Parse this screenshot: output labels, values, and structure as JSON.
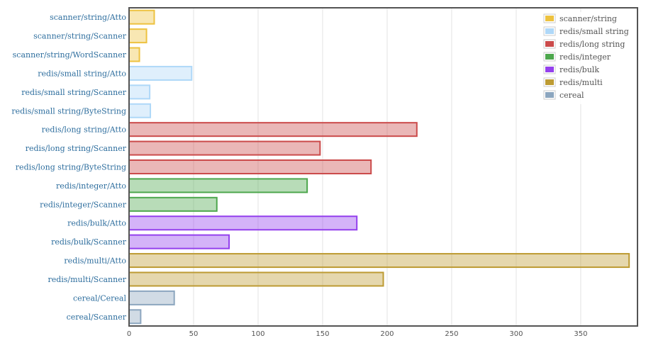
{
  "chart_data": {
    "type": "bar",
    "orientation": "horizontal",
    "categories": [
      "scanner/string/Atto",
      "scanner/string/Scanner",
      "scanner/string/WordScanner",
      "redis/small string/Atto",
      "redis/small string/Scanner",
      "redis/small string/ByteString",
      "redis/long string/Atto",
      "redis/long string/Scanner",
      "redis/long string/ByteString",
      "redis/integer/Atto",
      "redis/integer/Scanner",
      "redis/bulk/Atto",
      "redis/bulk/Scanner",
      "redis/multi/Atto",
      "redis/multi/Scanner",
      "cereal/Cereal",
      "cereal/Scanner"
    ],
    "values": [
      19.5,
      13.5,
      8,
      48.5,
      16,
      16.5,
      223,
      148,
      187.5,
      138,
      68,
      176.5,
      77.5,
      387.5,
      197,
      35,
      9
    ],
    "groups": [
      0,
      0,
      0,
      1,
      1,
      1,
      2,
      2,
      2,
      3,
      3,
      4,
      4,
      5,
      5,
      6,
      6
    ],
    "series": [
      {
        "name": "scanner/string",
        "color": "#edc240"
      },
      {
        "name": "redis/small string",
        "color": "#afd8f8"
      },
      {
        "name": "redis/long string",
        "color": "#cb4b4b"
      },
      {
        "name": "redis/integer",
        "color": "#4da74d"
      },
      {
        "name": "redis/bulk",
        "color": "#9440ed"
      },
      {
        "name": "redis/multi",
        "color": "#bd9b33"
      },
      {
        "name": "cereal",
        "color": "#8ca6bf"
      }
    ],
    "xticks": [
      0,
      50,
      100,
      150,
      200,
      250,
      300,
      350
    ],
    "xlim": [
      0,
      394
    ],
    "title": "",
    "xlabel": "",
    "ylabel": "",
    "grid": true,
    "legend_position": "top-right"
  }
}
